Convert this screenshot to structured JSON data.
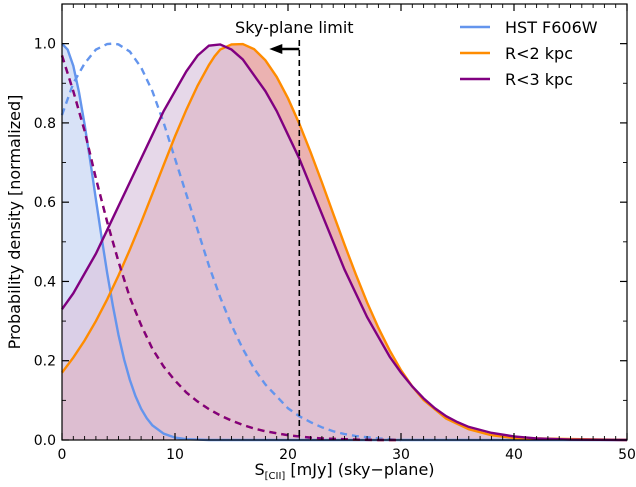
{
  "chart_data": {
    "type": "line",
    "xlabel_main": "S",
    "xlabel_sub": "[CII]",
    "xlabel_rest": " [mJy] (sky−plane)",
    "ylabel": "Probability density [normalized]",
    "xlim": [
      0,
      50
    ],
    "ylim": [
      0,
      1.1
    ],
    "x_ticks": [
      0,
      10,
      20,
      30,
      40,
      50
    ],
    "y_ticks": [
      0.0,
      0.2,
      0.4,
      0.6,
      0.8,
      1.0
    ],
    "x_tick_labels": [
      "0",
      "10",
      "20",
      "30",
      "40",
      "50"
    ],
    "y_tick_labels": [
      "0.0",
      "0.2",
      "0.4",
      "0.6",
      "0.8",
      "1.0"
    ],
    "annotation": {
      "text": "Sky-plane limit",
      "x": 21
    },
    "legend_position": "top-right",
    "series": [
      {
        "name": "HST F606W",
        "color": "#6495ED",
        "fill": "#c7d6f4",
        "solid": {
          "x": [
            0,
            0.5,
            1,
            1.5,
            2,
            2.5,
            3,
            3.5,
            4,
            4.5,
            5,
            5.5,
            6,
            6.5,
            7,
            7.5,
            8,
            9,
            10,
            11,
            12,
            13,
            14,
            15,
            17,
            20,
            50
          ],
          "y": [
            1.0,
            0.985,
            0.944,
            0.878,
            0.796,
            0.704,
            0.607,
            0.512,
            0.421,
            0.339,
            0.265,
            0.203,
            0.152,
            0.111,
            0.079,
            0.055,
            0.037,
            0.016,
            0.006,
            0.002,
            0.001,
            0.0,
            0.0,
            0.0,
            0.0,
            0.0,
            0.0
          ]
        },
        "dashed": {
          "x": [
            0,
            0.5,
            1,
            2,
            3,
            4,
            4.5,
            5,
            6,
            7,
            8,
            9,
            10,
            11,
            12,
            13,
            14,
            15,
            16,
            17,
            18,
            19,
            20,
            21,
            22,
            23,
            24,
            25,
            26,
            27,
            28,
            30
          ],
          "y": [
            0.82,
            0.86,
            0.9,
            0.95,
            0.985,
            0.999,
            1.0,
            0.998,
            0.98,
            0.94,
            0.88,
            0.8,
            0.71,
            0.62,
            0.53,
            0.44,
            0.36,
            0.29,
            0.23,
            0.18,
            0.14,
            0.11,
            0.08,
            0.06,
            0.045,
            0.032,
            0.022,
            0.015,
            0.01,
            0.007,
            0.004,
            0.0
          ]
        }
      },
      {
        "name": "R<2 kpc",
        "color": "#FF8C00",
        "fill": "#e39290",
        "solid": {
          "x": [
            0,
            1,
            2,
            3,
            4,
            5,
            6,
            7,
            8,
            9,
            10,
            11,
            12,
            13,
            13.5,
            14,
            15,
            16,
            17,
            18,
            19,
            20,
            21,
            22,
            23,
            24,
            25,
            26,
            27,
            28,
            29,
            30,
            31,
            32,
            34,
            36,
            38,
            40,
            50
          ],
          "y": [
            0.17,
            0.208,
            0.251,
            0.3,
            0.355,
            0.415,
            0.48,
            0.549,
            0.621,
            0.694,
            0.766,
            0.833,
            0.894,
            0.946,
            0.968,
            0.985,
            0.998,
            0.999,
            0.986,
            0.958,
            0.916,
            0.862,
            0.798,
            0.726,
            0.65,
            0.571,
            0.493,
            0.418,
            0.347,
            0.283,
            0.226,
            0.176,
            0.135,
            0.101,
            0.054,
            0.027,
            0.012,
            0.005,
            0.0
          ]
        },
        "dashed": {
          "x": [
            0,
            1,
            2,
            3,
            4,
            5,
            6,
            7,
            8,
            9,
            10,
            11,
            12,
            13,
            14,
            15,
            16,
            17,
            18,
            19,
            20,
            21,
            22,
            23,
            24,
            25,
            26,
            28,
            30
          ],
          "y": [
            0.97,
            0.88,
            0.78,
            0.66,
            0.55,
            0.45,
            0.36,
            0.29,
            0.23,
            0.185,
            0.15,
            0.12,
            0.097,
            0.078,
            0.062,
            0.049,
            0.038,
            0.029,
            0.022,
            0.017,
            0.012,
            0.009,
            0.006,
            0.004,
            0.003,
            0.002,
            0.001,
            0.0,
            0.0
          ]
        }
      },
      {
        "name": "R<3 kpc",
        "color": "#800080",
        "fill": "#dcc8e0",
        "solid": {
          "x": [
            0,
            1,
            2,
            3,
            4,
            5,
            6,
            7,
            8,
            9,
            10,
            11,
            12,
            13,
            14,
            15,
            16,
            17,
            18,
            19,
            20,
            21,
            22,
            23,
            24,
            25,
            26,
            27,
            28,
            29,
            30,
            31,
            32,
            33,
            34,
            35,
            36,
            38,
            40,
            42,
            45,
            50
          ],
          "y": [
            0.33,
            0.37,
            0.42,
            0.47,
            0.53,
            0.59,
            0.65,
            0.71,
            0.77,
            0.83,
            0.88,
            0.93,
            0.97,
            0.995,
            0.998,
            0.985,
            0.96,
            0.92,
            0.88,
            0.83,
            0.77,
            0.71,
            0.64,
            0.57,
            0.5,
            0.43,
            0.37,
            0.31,
            0.26,
            0.21,
            0.17,
            0.135,
            0.105,
            0.08,
            0.06,
            0.045,
            0.033,
            0.018,
            0.009,
            0.004,
            0.001,
            0.0
          ]
        },
        "dashed": {
          "x": [
            0,
            1,
            2,
            3,
            4,
            5,
            6,
            7,
            8,
            9,
            10,
            11,
            12,
            13,
            14,
            15,
            16,
            17,
            18,
            19,
            20,
            21,
            22,
            23,
            24,
            25,
            26,
            28,
            30
          ],
          "y": [
            0.97,
            0.88,
            0.78,
            0.66,
            0.55,
            0.45,
            0.36,
            0.29,
            0.23,
            0.185,
            0.15,
            0.12,
            0.097,
            0.078,
            0.062,
            0.049,
            0.038,
            0.029,
            0.022,
            0.017,
            0.012,
            0.009,
            0.006,
            0.004,
            0.003,
            0.002,
            0.001,
            0.0,
            0.0
          ]
        }
      }
    ]
  }
}
